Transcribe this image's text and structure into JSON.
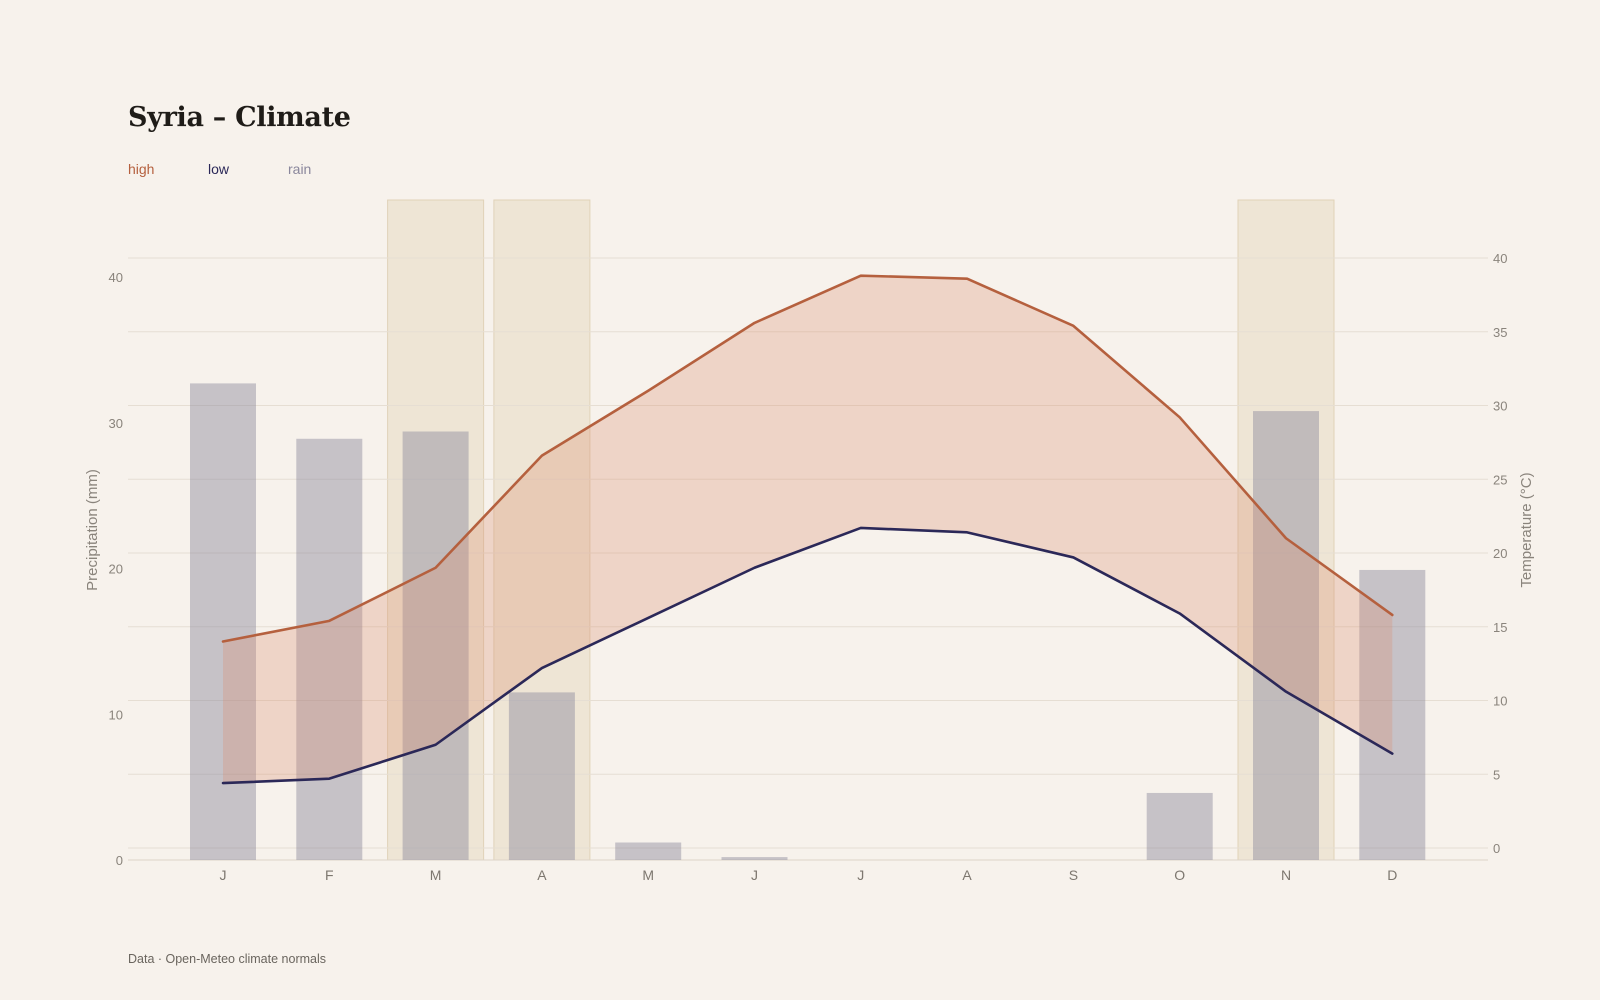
{
  "title": "Syria – Climate",
  "legend": [
    {
      "label": "high",
      "color": "#b5603e"
    },
    {
      "label": "low",
      "color": "#2b2858"
    },
    {
      "label": "rain",
      "color": "#8a879c"
    }
  ],
  "footer": "Data · Open-Meteo climate normals",
  "chart_data": {
    "type": "bar+line",
    "categories": [
      "J",
      "F",
      "M",
      "A",
      "M",
      "J",
      "J",
      "A",
      "S",
      "O",
      "N",
      "D"
    ],
    "series": [
      {
        "name": "rain",
        "axis": "left",
        "type": "bar",
        "values": [
          32.7,
          28.9,
          29.4,
          11.5,
          1.2,
          0.2,
          0,
          0,
          0,
          4.6,
          30.8,
          19.9
        ]
      },
      {
        "name": "high",
        "axis": "right",
        "type": "line",
        "values": [
          14.0,
          15.4,
          19.0,
          26.6,
          31.0,
          35.6,
          38.8,
          38.6,
          35.4,
          29.2,
          21.0,
          15.8
        ]
      },
      {
        "name": "low",
        "axis": "right",
        "type": "line",
        "values": [
          4.4,
          4.7,
          7.0,
          12.2,
          15.6,
          19.0,
          21.7,
          21.4,
          19.7,
          15.9,
          10.6,
          6.4
        ]
      }
    ],
    "highlight_months": [
      2,
      3,
      10
    ],
    "y_left": {
      "label": "Precipitation (mm)",
      "lim": [
        0,
        40
      ],
      "ticks": [
        0,
        10,
        20,
        30,
        40
      ]
    },
    "y_right": {
      "label": "Temperature (°C)",
      "lim": [
        0,
        40
      ],
      "ticks": [
        0,
        5,
        10,
        15,
        20,
        25,
        30,
        35,
        40
      ]
    },
    "grid": true,
    "legend_position": "top-left"
  }
}
